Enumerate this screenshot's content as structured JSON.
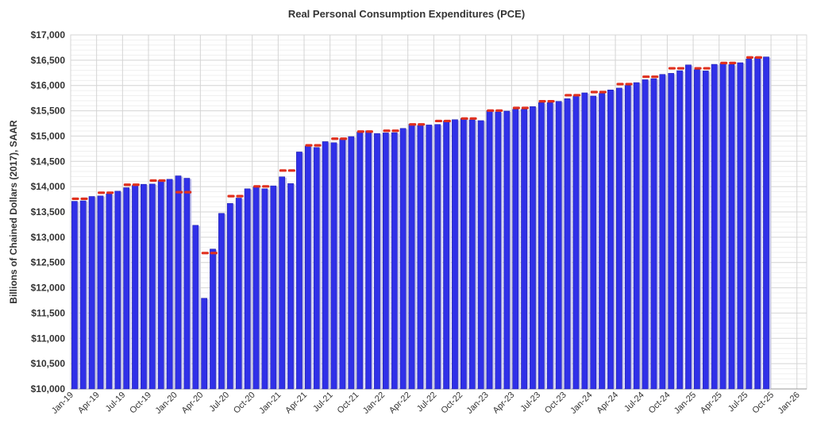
{
  "chart_data": {
    "type": "bar",
    "title": "Real Personal Consumption Expenditures (PCE)",
    "xlabel": "",
    "ylabel": "Billions of Chained Dollars (2017), SAAR",
    "ylim": [
      10000,
      17000
    ],
    "y_ticks": [
      "$10,000",
      "$10,500",
      "$11,000",
      "$11,500",
      "$12,000",
      "$12,500",
      "$13,000",
      "$13,500",
      "$14,000",
      "$14,500",
      "$15,000",
      "$15,500",
      "$16,000",
      "$16,500",
      "$17,000"
    ],
    "x_tick_labels": [
      "Jan-19",
      "Apr-19",
      "Jul-19",
      "Oct-19",
      "Jan-20",
      "Apr-20",
      "Jul-20",
      "Oct-20",
      "Jan-21",
      "Apr-21",
      "Jul-21",
      "Oct-21",
      "Jan-22",
      "Apr-22",
      "Jul-22",
      "Oct-22",
      "Jan-23",
      "Apr-23",
      "Jul-23",
      "Oct-23",
      "Jan-24",
      "Apr-24",
      "Jul-24",
      "Oct-24",
      "Jan-25",
      "Apr-25",
      "Jul-25",
      "Oct-25",
      "Jan-26"
    ],
    "grid": true,
    "legend": "none",
    "colors": {
      "bar": "#3030e8",
      "quarterly_average": "#e0301e"
    },
    "monthly_start": "Jan-19",
    "values": [
      13711,
      13720,
      13806,
      13817,
      13859,
      13911,
      13979,
      14026,
      14047,
      14052,
      14120,
      14146,
      14214,
      14167,
      13236,
      11793,
      12766,
      13472,
      13670,
      13775,
      13958,
      13995,
      13958,
      14016,
      14194,
      14063,
      14686,
      14801,
      14775,
      14890,
      14869,
      14948,
      14990,
      15079,
      15105,
      15052,
      15063,
      15068,
      15152,
      15236,
      15210,
      15220,
      15230,
      15298,
      15325,
      15347,
      15321,
      15306,
      15504,
      15478,
      15494,
      15530,
      15530,
      15583,
      15661,
      15661,
      15687,
      15740,
      15792,
      15855,
      15792,
      15845,
      15913,
      15950,
      16002,
      16058,
      16115,
      16136,
      16220,
      16241,
      16293,
      16408,
      16314,
      16288,
      16419,
      16435,
      16414,
      16451,
      16524,
      16555,
      16566
    ],
    "quarterly_average": [
      13760,
      13880,
      14037,
      14120,
      13890,
      12687,
      13812,
      14005,
      14319,
      14817,
      14948,
      15089,
      15105,
      15230,
      15298,
      15347,
      15504,
      15556,
      15687,
      15808,
      15870,
      16028,
      16173,
      16340,
      16340,
      16445,
      16555
    ]
  }
}
